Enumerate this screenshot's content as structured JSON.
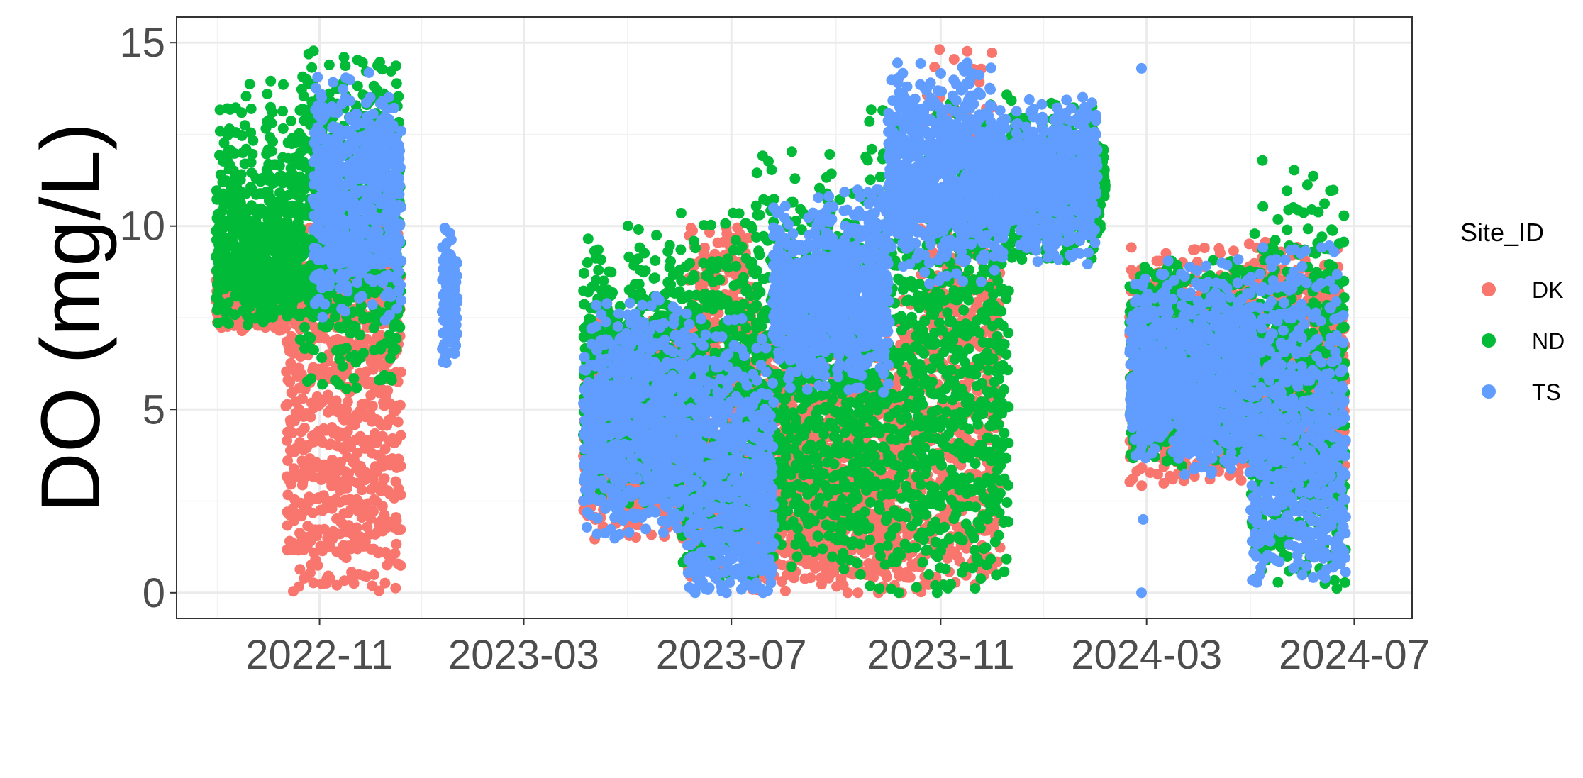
{
  "chart_data": {
    "type": "scatter",
    "xlabel": "",
    "ylabel": "DO (mg/L)",
    "ylim": [
      -0.7,
      15.7
    ],
    "xlim": [
      "2022-08-09",
      "2024-08-04"
    ],
    "y_ticks": [
      0,
      5,
      10,
      15
    ],
    "y_tick_labels": [
      "0",
      "5",
      "10",
      "15"
    ],
    "x_ticks": [
      "2022-11-01",
      "2023-03-01",
      "2023-07-01",
      "2023-11-01",
      "2024-03-01",
      "2024-07-01"
    ],
    "x_tick_labels": [
      "2022-11",
      "2023-03",
      "2023-07",
      "2023-11",
      "2024-03",
      "2024-07"
    ],
    "grid": true,
    "legend": {
      "title": "Site_ID",
      "position": "right"
    },
    "series": [
      {
        "name": "DK",
        "color": "#F8766D",
        "segments": [
          {
            "start": "2022-09-01",
            "end": "2022-10-12",
            "low": [
              7.2,
              7.6
            ],
            "high": [
              8.5,
              9.2
            ]
          },
          {
            "start": "2022-10-12",
            "end": "2022-12-18",
            "low": [
              0.0,
              2.0
            ],
            "high": [
              8.0,
              10.0
            ]
          },
          {
            "start": "2023-04-05",
            "end": "2023-06-05",
            "low": [
              1.5,
              3.0
            ],
            "high": [
              5.0,
              7.5
            ]
          },
          {
            "start": "2023-06-05",
            "end": "2023-07-12",
            "low": [
              0.5,
              3.0
            ],
            "high": [
              8.5,
              10.1
            ]
          },
          {
            "start": "2023-07-12",
            "end": "2023-09-15",
            "low": [
              0.0,
              1.5
            ],
            "high": [
              4.0,
              8.0
            ]
          },
          {
            "start": "2023-09-15",
            "end": "2023-10-20",
            "low": [
              0.0,
              1.0
            ],
            "high": [
              5.0,
              8.0
            ]
          },
          {
            "start": "2023-10-20",
            "end": "2023-12-05",
            "low": [
              0.0,
              2.0
            ],
            "high": [
              8.0,
              15.0
            ]
          },
          {
            "start": "2024-02-20",
            "end": "2024-06-25",
            "low": [
              3.0,
              4.5
            ],
            "high": [
              7.0,
              9.5
            ]
          }
        ]
      },
      {
        "name": "ND",
        "color": "#00BA38",
        "segments": [
          {
            "start": "2022-09-01",
            "end": "2022-10-20",
            "low": [
              7.4,
              8.5
            ],
            "high": [
              9.5,
              14.0
            ]
          },
          {
            "start": "2022-10-20",
            "end": "2022-12-18",
            "low": [
              5.5,
              9.0
            ],
            "high": [
              11.5,
              14.8
            ]
          },
          {
            "start": "2023-04-05",
            "end": "2023-06-01",
            "low": [
              2.5,
              4.5
            ],
            "high": [
              6.0,
              10.0
            ]
          },
          {
            "start": "2023-06-01",
            "end": "2023-07-15",
            "low": [
              0.2,
              2.0
            ],
            "high": [
              7.0,
              10.5
            ]
          },
          {
            "start": "2023-07-15",
            "end": "2023-09-20",
            "low": [
              0.5,
              3.0
            ],
            "high": [
              7.0,
              12.0
            ]
          },
          {
            "start": "2023-09-20",
            "end": "2023-12-10",
            "low": [
              0.0,
              3.0
            ],
            "high": [
              8.0,
              13.5
            ]
          },
          {
            "start": "2023-12-10",
            "end": "2024-02-05",
            "low": [
              9.0,
              11.0
            ],
            "high": [
              11.0,
              13.5
            ]
          },
          {
            "start": "2024-02-20",
            "end": "2024-05-01",
            "low": [
              3.5,
              5.0
            ],
            "high": [
              7.0,
              9.0
            ]
          },
          {
            "start": "2024-05-01",
            "end": "2024-06-25",
            "low": [
              0.2,
              2.5
            ],
            "high": [
              6.0,
              12.0
            ]
          }
        ]
      },
      {
        "name": "TS",
        "color": "#619CFF",
        "segments": [
          {
            "start": "2022-10-28",
            "end": "2022-12-18",
            "low": [
              7.5,
              9.5
            ],
            "high": [
              12.0,
              14.2
            ]
          },
          {
            "start": "2023-01-12",
            "end": "2023-01-20",
            "low": [
              6.3,
              7.0
            ],
            "high": [
              8.5,
              9.9
            ]
          },
          {
            "start": "2023-04-05",
            "end": "2023-06-05",
            "low": [
              1.5,
              3.5
            ],
            "high": [
              5.5,
              8.0
            ]
          },
          {
            "start": "2023-06-05",
            "end": "2023-07-25",
            "low": [
              0.0,
              0.8
            ],
            "high": [
              4.0,
              7.5
            ]
          },
          {
            "start": "2023-07-25",
            "end": "2023-10-01",
            "low": [
              5.5,
              7.5
            ],
            "high": [
              8.5,
              11.0
            ]
          },
          {
            "start": "2023-10-01",
            "end": "2023-12-05",
            "low": [
              8.5,
              10.5
            ],
            "high": [
              12.0,
              14.5
            ]
          },
          {
            "start": "2023-12-05",
            "end": "2024-01-31",
            "low": [
              9.0,
              11.0
            ],
            "high": [
              11.5,
              13.5
            ]
          },
          {
            "start": "2024-02-20",
            "end": "2024-05-01",
            "low": [
              3.2,
              5.0
            ],
            "high": [
              6.5,
              9.0
            ]
          },
          {
            "start": "2024-05-01",
            "end": "2024-06-25",
            "low": [
              0.3,
              2.0
            ],
            "high": [
              5.0,
              9.5
            ]
          }
        ],
        "extra_points": [
          {
            "x": "2024-02-27",
            "y": 0.0
          },
          {
            "x": "2024-02-27",
            "y": 14.3
          },
          {
            "x": "2024-02-28",
            "y": 2.0
          }
        ]
      }
    ]
  }
}
